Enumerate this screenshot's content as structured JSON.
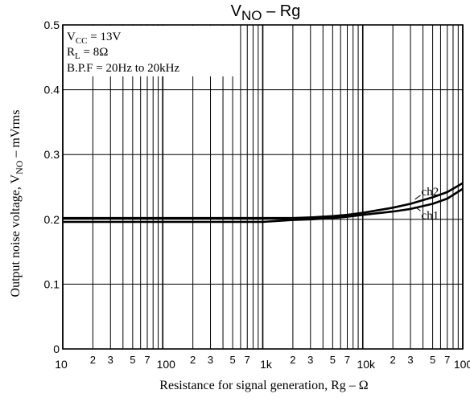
{
  "chart_data": {
    "type": "line",
    "title": {
      "main": "V",
      "sub": "NO",
      "rest": " –  Rg"
    },
    "xlabel": "Resistance for signal generation, Rg  –  Ω",
    "ylabel": {
      "main": "Output noise voltage, V",
      "sub": "NO",
      "rest": "  –  mVrms"
    },
    "x_scale": "log",
    "xlim": [
      10,
      100000
    ],
    "ylim": [
      0,
      0.5
    ],
    "y_ticks": [
      {
        "value": 0,
        "label": "0"
      },
      {
        "value": 0.1,
        "label": "0.1"
      },
      {
        "value": 0.2,
        "label": "0.2"
      },
      {
        "value": 0.3,
        "label": "0.3"
      },
      {
        "value": 0.4,
        "label": "0.4"
      },
      {
        "value": 0.5,
        "label": "0.5"
      }
    ],
    "x_major_ticks": [
      {
        "value": 10,
        "label": "10"
      },
      {
        "value": 100,
        "label": "100"
      },
      {
        "value": 1000,
        "label": "1k"
      },
      {
        "value": 10000,
        "label": "10k"
      },
      {
        "value": 100000,
        "label": "100k"
      }
    ],
    "x_minor_labels": [
      "2",
      "3",
      "5",
      "7"
    ],
    "x_minor_multipliers": [
      2,
      3,
      5,
      7
    ],
    "grid": true,
    "conditions": [
      {
        "main": "V",
        "sub": "CC",
        "rest": " = 13V"
      },
      {
        "main": "R",
        "sub": "L",
        "rest": " = 8Ω"
      },
      {
        "main": "B.P.F = 20Hz to 20kHz",
        "sub": "",
        "rest": ""
      }
    ],
    "series": [
      {
        "name": "ch1",
        "color": "#000000",
        "x": [
          10,
          100,
          1000,
          2000,
          3000,
          5000,
          7000,
          10000,
          20000,
          30000,
          50000,
          70000,
          100000
        ],
        "y": [
          0.196,
          0.196,
          0.196,
          0.199,
          0.2,
          0.202,
          0.204,
          0.207,
          0.212,
          0.216,
          0.224,
          0.232,
          0.247
        ]
      },
      {
        "name": "ch2",
        "color": "#000000",
        "x": [
          10,
          100,
          1000,
          2000,
          3000,
          5000,
          7000,
          10000,
          20000,
          30000,
          50000,
          70000,
          100000
        ],
        "y": [
          0.202,
          0.202,
          0.202,
          0.202,
          0.203,
          0.205,
          0.207,
          0.21,
          0.218,
          0.224,
          0.234,
          0.242,
          0.256
        ]
      }
    ]
  }
}
